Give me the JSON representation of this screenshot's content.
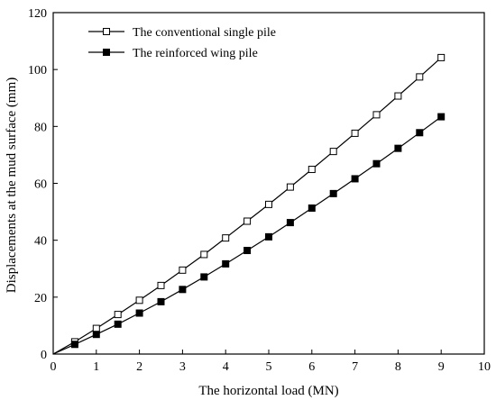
{
  "chart_data": {
    "type": "line",
    "title": "",
    "xlabel": "The horizontal load (MN)",
    "ylabel": "Displacements at the mud surface (mm)",
    "xlim": [
      0,
      10
    ],
    "ylim": [
      0,
      120
    ],
    "xticks": [
      0,
      1,
      2,
      3,
      4,
      5,
      6,
      7,
      8,
      9,
      10
    ],
    "yticks": [
      0,
      20,
      40,
      60,
      80,
      100,
      120
    ],
    "grid": false,
    "legend_position": "top-left",
    "x": [
      0,
      0.5,
      1,
      1.5,
      2,
      2.5,
      3,
      3.5,
      4,
      4.5,
      5,
      5.5,
      6,
      6.5,
      7,
      7.5,
      8,
      8.5,
      9
    ],
    "series": [
      {
        "name": "The conventional single pile",
        "marker": "hollow-square",
        "color": "#000000",
        "values": [
          0,
          4.3,
          9.0,
          13.9,
          18.9,
          24.1,
          29.5,
          35.0,
          40.8,
          46.7,
          52.6,
          58.7,
          64.9,
          71.2,
          77.6,
          84.1,
          90.7,
          97.4,
          104.2
        ]
      },
      {
        "name": "The reinforced wing pile",
        "marker": "filled-square",
        "color": "#000000",
        "values": [
          0,
          3.4,
          6.9,
          10.5,
          14.4,
          18.4,
          22.7,
          27.1,
          31.7,
          36.4,
          41.2,
          46.2,
          51.3,
          56.4,
          61.6,
          66.9,
          72.3,
          77.8,
          83.4
        ]
      }
    ]
  }
}
